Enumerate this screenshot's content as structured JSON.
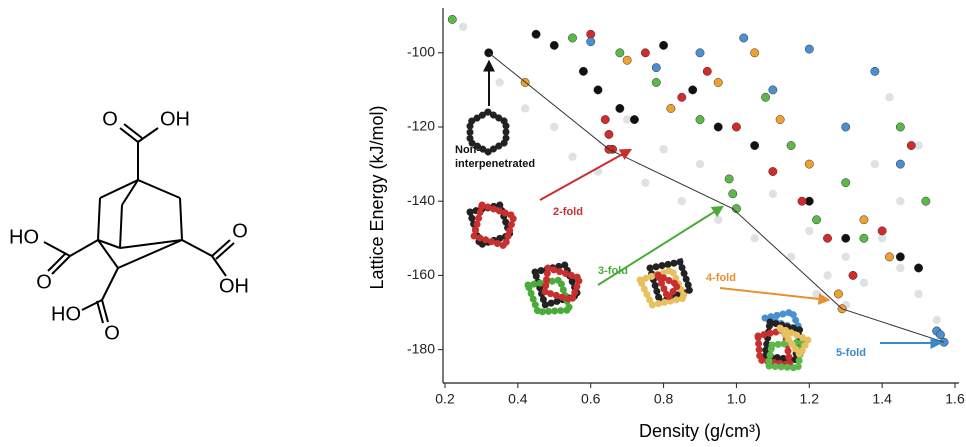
{
  "molecule": {
    "labels": [
      "O",
      "OH",
      "HO",
      "O",
      "O",
      "OH",
      "HO",
      "O"
    ]
  },
  "chart_data": {
    "type": "scatter",
    "ylabel": "Lattice Energy (kJ/mol)",
    "xlabel": "Density (g/cm³)",
    "xlim": [
      0.2,
      1.6
    ],
    "ylim": [
      -189,
      -89
    ],
    "xticks": [
      0.2,
      0.4,
      0.6,
      0.8,
      {
        "value": 1,
        "label": "1.0"
      },
      1.2,
      1.4,
      1.6
    ],
    "yticks": [
      -100,
      -120,
      -140,
      -160,
      -180
    ],
    "series": [
      {
        "color": "#b4bec4",
        "mode": "points",
        "opacity": 0.45,
        "x": [
          0.25,
          0.35,
          0.42,
          0.5,
          0.55,
          0.62,
          0.7,
          0.75,
          0.8,
          0.85,
          0.9,
          0.95,
          1.0,
          1.05,
          1.1,
          1.15,
          1.2,
          1.25,
          1.3,
          1.35,
          1.4,
          1.45,
          1.5,
          1.55,
          1.45,
          1.38,
          1.3,
          1.22,
          1.5,
          1.42
        ],
        "values": [
          -93,
          -108,
          -115,
          -120,
          -128,
          -132,
          -118,
          -135,
          -126,
          -140,
          -130,
          -145,
          -120,
          -150,
          -138,
          -155,
          -148,
          -160,
          -155,
          -162,
          -150,
          -158,
          -165,
          -172,
          -140,
          -130,
          -168,
          -165,
          -125,
          -112
        ]
      },
      {
        "color": "#111111",
        "mode": "points",
        "opacity": 1,
        "x": [
          0.32,
          0.45,
          0.5,
          0.58,
          0.62,
          0.68,
          0.72,
          0.8,
          0.88,
          0.95,
          1.05,
          1.2,
          1.3,
          1.45,
          1.5
        ],
        "values": [
          -100,
          -95,
          -98,
          -105,
          -110,
          -115,
          -118,
          -98,
          -110,
          -120,
          -125,
          -140,
          -150,
          -155,
          -158
        ]
      },
      {
        "color": "#d42a2a",
        "mode": "points",
        "opacity": 1,
        "x": [
          0.6,
          0.64,
          0.65,
          0.66,
          0.75,
          0.85,
          0.92,
          1.0,
          1.1,
          1.18,
          1.25,
          1.32,
          1.4,
          1.48,
          0.65
        ],
        "values": [
          -95,
          -118,
          -122,
          -126,
          -100,
          -112,
          -105,
          -120,
          -132,
          -140,
          -150,
          -160,
          -148,
          -125,
          -126
        ]
      },
      {
        "color": "#5cb84a",
        "mode": "points",
        "opacity": 1,
        "x": [
          0.22,
          0.55,
          0.68,
          0.78,
          0.9,
          0.98,
          0.99,
          1.0,
          1.08,
          1.15,
          1.22,
          1.3,
          1.35,
          1.45,
          1.52
        ],
        "values": [
          -91,
          -96,
          -100,
          -108,
          -118,
          -134,
          -138,
          -142,
          -112,
          -125,
          -145,
          -135,
          -150,
          -120,
          -140
        ]
      },
      {
        "color": "#f0a030",
        "mode": "points",
        "opacity": 1,
        "x": [
          0.42,
          0.7,
          0.82,
          0.95,
          1.05,
          1.12,
          1.2,
          1.28,
          1.29,
          1.35,
          1.42,
          1.55
        ],
        "values": [
          -108,
          -102,
          -115,
          -108,
          -100,
          -118,
          -130,
          -165,
          -169,
          -145,
          -155,
          -175
        ]
      },
      {
        "color": "#4a90d0",
        "mode": "points",
        "opacity": 1,
        "x": [
          0.6,
          0.78,
          0.9,
          1.02,
          1.1,
          1.2,
          1.3,
          1.38,
          1.45,
          1.55,
          1.56,
          1.57
        ],
        "values": [
          -97,
          -104,
          -100,
          -96,
          -110,
          -99,
          -120,
          -105,
          -130,
          -175,
          -176,
          -178
        ]
      },
      {
        "color": "#333333",
        "mode": "line",
        "opacity": 1,
        "x": [
          0.32,
          0.65,
          0.99,
          1.29,
          1.57
        ],
        "values": [
          -100,
          -126,
          -142,
          -169,
          -178
        ]
      }
    ],
    "annotations": [
      {
        "lines": [
          "Non-",
          "interpenetrated"
        ],
        "color": "#111111"
      },
      {
        "lines": [
          "2-fold"
        ],
        "color": "#c83030"
      },
      {
        "lines": [
          "3-fold"
        ],
        "color": "#4aaa3a"
      },
      {
        "lines": [
          "4-fold"
        ],
        "color": "#e89030"
      },
      {
        "lines": [
          "5-fold"
        ],
        "color": "#3a88c8"
      }
    ]
  }
}
